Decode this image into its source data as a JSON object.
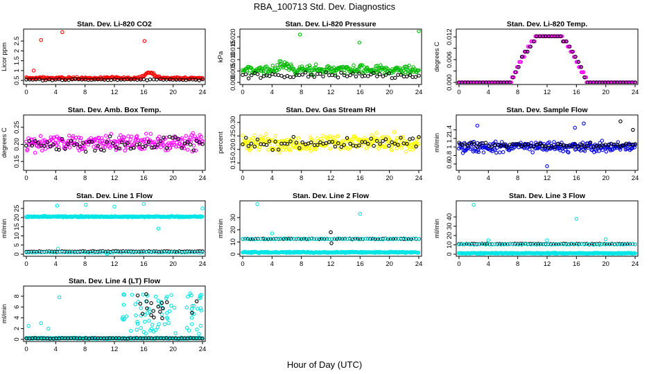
{
  "figure": {
    "title": "RBA_100713  Std. Dev. Diagnostics",
    "xlabel": "Hour of Day (UTC)"
  },
  "chart_data": [
    {
      "type": "scatter",
      "title": "Stan. Dev. Li-820 CO2",
      "ylabel": "Licor ppm",
      "xlim": [
        0,
        24
      ],
      "ylim": [
        0.4,
        3.0
      ],
      "xticks": [
        "0",
        "4",
        "8",
        "12",
        "16",
        "20",
        "24"
      ],
      "yticks": [
        0.5,
        1.0,
        1.5,
        2.0,
        2.5
      ],
      "series": [
        {
          "color": "#ff0000",
          "base": 0.62,
          "spread": 0.08,
          "count": 200,
          "bump": [
            16.8,
            0.3,
            0.9
          ],
          "outliers": [
            [
              2.0,
              2.55
            ],
            [
              4.9,
              2.95
            ],
            [
              16.1,
              2.5
            ],
            [
              1.0,
              1.0
            ]
          ]
        },
        {
          "color": "#000000",
          "base": 0.54,
          "spread": 0.05,
          "count": 55
        }
      ]
    },
    {
      "type": "scatter",
      "title": "Stan. Dev. Li-820 Pressure",
      "ylabel": "kPa",
      "xlim": [
        0,
        24
      ],
      "ylim": [
        0,
        0.0225
      ],
      "xticks": [
        "0",
        "4",
        "8",
        "12",
        "16",
        "20",
        "24"
      ],
      "yticks": [
        0.0,
        0.005,
        0.01,
        0.015,
        0.02
      ],
      "ytick_labels": [
        "0.000",
        "0.005",
        "0.010",
        "0.015",
        "0.020"
      ],
      "series": [
        {
          "color": "#00bb00",
          "base": 0.0055,
          "spread": 0.0028,
          "count": 260,
          "bump": [
            5.5,
            0.0025,
            0.8
          ],
          "outliers": [
            [
              7.8,
              0.021
            ],
            [
              15.9,
              0.0175
            ],
            [
              24,
              0.0225
            ]
          ]
        },
        {
          "color": "#000000",
          "base": 0.003,
          "spread": 0.002,
          "count": 60
        }
      ]
    },
    {
      "type": "scatter",
      "title": "Stan. Dev. Li-820 Temp.",
      "ylabel": "degrees C",
      "xlim": [
        0,
        24
      ],
      "ylim": [
        0,
        0.0135
      ],
      "xticks": [
        "0",
        "4",
        "8",
        "12",
        "16",
        "20",
        "24"
      ],
      "yticks": [
        0.0,
        0.003,
        0.006,
        0.009,
        0.012
      ],
      "ytick_labels": [
        "0.000",
        "",
        "0.006",
        "",
        "0.012"
      ],
      "series": [
        {
          "color": "#ff00ff",
          "shape": "arch",
          "count": 220
        },
        {
          "color": "#000000",
          "shape": "arch",
          "count": 60
        }
      ]
    },
    {
      "type": "scatter",
      "title": "Stan. Dev. Amb. Box Temp.",
      "ylabel": "degrees C",
      "xlim": [
        0,
        24
      ],
      "ylim": [
        0.13,
        0.28
      ],
      "xticks": [
        "0",
        "4",
        "8",
        "12",
        "16",
        "20",
        "24"
      ],
      "yticks": [
        0.15,
        0.2,
        0.25
      ],
      "ytick_labels": [
        "0.15",
        "0.20",
        "0.25"
      ],
      "series": [
        {
          "color": "#ff00ff",
          "base": 0.205,
          "spread": 0.035,
          "count": 260
        },
        {
          "color": "#000000",
          "base": 0.2,
          "spread": 0.03,
          "count": 60
        }
      ]
    },
    {
      "type": "scatter",
      "title": "Stan. Dev. Gas Stream RH",
      "ylabel": "percent",
      "xlim": [
        0,
        24
      ],
      "ylim": [
        0.13,
        0.32
      ],
      "xticks": [
        "0",
        "4",
        "8",
        "12",
        "16",
        "20",
        "24"
      ],
      "yticks": [
        0.15,
        0.2,
        0.25,
        0.3
      ],
      "ytick_labels": [
        "0.15",
        "0.20",
        "0.25",
        "0.30"
      ],
      "series": [
        {
          "color": "#ffff00",
          "base": 0.225,
          "spread": 0.045,
          "count": 280
        },
        {
          "color": "#000000",
          "base": 0.22,
          "spread": 0.035,
          "count": 60
        }
      ]
    },
    {
      "type": "scatter",
      "title": "Stan. Dev. Sample Flow",
      "ylabel": "ml/min",
      "xlim": [
        0,
        24
      ],
      "ylim": [
        0.5,
        1.7
      ],
      "xticks": [
        "0",
        "4",
        "8",
        "12",
        "16",
        "20",
        "24"
      ],
      "yticks": [
        0.6,
        0.8,
        1.0,
        1.2,
        1.4
      ],
      "series": [
        {
          "color": "#0000dd",
          "base": 1.0,
          "spread": 0.18,
          "count": 260,
          "outliers": [
            [
              2.5,
              1.5
            ],
            [
              15.8,
              1.45
            ],
            [
              17.0,
              1.55
            ],
            [
              12.0,
              0.55
            ]
          ]
        },
        {
          "color": "#000000",
          "base": 1.05,
          "spread": 0.1,
          "count": 60,
          "outliers": [
            [
              22.0,
              1.6
            ],
            [
              23.7,
              1.4
            ]
          ]
        }
      ]
    },
    {
      "type": "scatter",
      "title": "Stan. Dev. Line 1 Flow",
      "ylabel": "ml/min",
      "xlim": [
        0,
        24
      ],
      "ylim": [
        0,
        28
      ],
      "xticks": [
        "0",
        "4",
        "8",
        "12",
        "16",
        "20",
        "24"
      ],
      "yticks": [
        0,
        5,
        10,
        15,
        20,
        25
      ],
      "series": [
        {
          "color": "#00e5e5",
          "base": 20.5,
          "spread": 0.5,
          "count": 320,
          "outliers": [
            [
              4.2,
              26.5
            ],
            [
              8.1,
              27.0
            ],
            [
              12.0,
              26.0
            ],
            [
              16.0,
              27.5
            ],
            [
              18.0,
              14.0
            ],
            [
              24.0,
              25.0
            ],
            [
              4.3,
              3.0
            ],
            [
              11.0,
              0.2
            ]
          ]
        },
        {
          "color": "#000000",
          "base": 1.5,
          "spread": 0.3,
          "count": 70
        },
        {
          "color": "#00e5e5",
          "base": 1.0,
          "spread": 0.3,
          "count": 60
        }
      ]
    },
    {
      "type": "scatter",
      "title": "Stan. Dev. Line 2 Flow",
      "ylabel": "ml/min",
      "xlim": [
        0,
        24
      ],
      "ylim": [
        0,
        42
      ],
      "xticks": [
        "0",
        "4",
        "8",
        "12",
        "16",
        "20",
        "24"
      ],
      "yticks": [
        0,
        10,
        20,
        30
      ],
      "series": [
        {
          "color": "#00e5e5",
          "base": 1.5,
          "spread": 0.8,
          "count": 300,
          "outliers": [
            [
              2.0,
              41.0
            ],
            [
              16.0,
              33.0
            ],
            [
              4.0,
              17.0
            ]
          ]
        },
        {
          "color": "#000000",
          "base": 12.5,
          "spread": 0.5,
          "count": 70,
          "outliers": [
            [
              12.0,
              18.0
            ],
            [
              12.1,
              9.0
            ]
          ]
        },
        {
          "color": "#00e5e5",
          "base": 12.5,
          "spread": 0.6,
          "count": 60
        }
      ]
    },
    {
      "type": "scatter",
      "title": "Stan. Dev. Line 3 Flow",
      "ylabel": "ml/min",
      "xlim": [
        0,
        24
      ],
      "ylim": [
        0,
        55
      ],
      "xticks": [
        "0",
        "4",
        "8",
        "12",
        "16",
        "20",
        "24"
      ],
      "yticks": [
        0,
        10,
        20,
        30,
        40
      ],
      "series": [
        {
          "color": "#00e5e5",
          "base": 1.0,
          "spread": 0.8,
          "count": 300,
          "outliers": [
            [
              2.0,
              53.0
            ],
            [
              16.0,
              38.0
            ],
            [
              4.0,
              15.0
            ],
            [
              20.0,
              16.0
            ],
            [
              12.0,
              15.0
            ]
          ]
        },
        {
          "color": "#000000",
          "base": 11.0,
          "spread": 0.6,
          "count": 70
        },
        {
          "color": "#00e5e5",
          "base": 10.5,
          "spread": 0.6,
          "count": 60
        }
      ]
    },
    {
      "type": "scatter",
      "title": "Stan. Dev. Line 4 (LT) Flow",
      "ylabel": "ml/min",
      "xlim": [
        0,
        24
      ],
      "ylim": [
        0,
        9.5
      ],
      "xticks": [
        "0",
        "4",
        "8",
        "12",
        "16",
        "20",
        "24"
      ],
      "yticks": [
        0,
        2,
        4,
        6,
        8
      ],
      "series": [
        {
          "color": "#00e5e5",
          "base": 0.2,
          "spread": 0.15,
          "count": 300,
          "cluster": [
            13,
            24,
            1.0,
            9.0,
            80
          ],
          "outliers": [
            [
              4.5,
              7.8
            ],
            [
              0.3,
              2.5
            ],
            [
              2.0,
              3.0
            ],
            [
              3.0,
              2.0
            ]
          ]
        },
        {
          "color": "#000000",
          "base": 0.2,
          "spread": 0.1,
          "count": 60,
          "cluster": [
            15,
            24,
            3.0,
            8.5,
            18
          ]
        }
      ]
    }
  ]
}
